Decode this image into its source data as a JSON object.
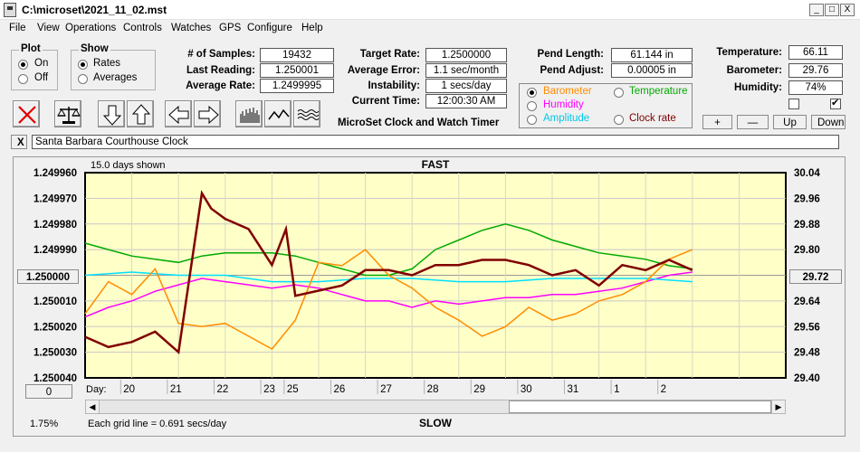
{
  "window": {
    "title": "C:\\microset\\2021_11_02.mst",
    "min": "_",
    "max": "□",
    "close": "X"
  },
  "menu": [
    "File",
    "View",
    "Operations",
    "Controls",
    "Watches",
    "GPS",
    "Configure",
    "Help"
  ],
  "plot": {
    "legend": "Plot",
    "on": "On",
    "off": "Off"
  },
  "show": {
    "legend": "Show",
    "rates": "Rates",
    "averages": "Averages"
  },
  "stats": {
    "samples_label": "# of Samples:",
    "samples": "19432",
    "last_label": "Last Reading:",
    "last": "1.250001",
    "avg_label": "Average Rate:",
    "avg": "1.2499995"
  },
  "rates": {
    "target_label": "Target Rate:",
    "target": "1.2500000",
    "avgerr_label": "Average Error:",
    "avgerr": "1.1 sec/month",
    "instab_label": "Instability:",
    "instab": "1 secs/day",
    "time_label": "Current Time:",
    "time": "12:00:30 AM",
    "caption": "MicroSet Clock and Watch Timer"
  },
  "pendulum": {
    "length_label": "Pend Length:",
    "length": "61.144 in",
    "adjust_label": "Pend Adjust:",
    "adjust": "0.00005 in"
  },
  "sensors": {
    "temp_label": "Temperature:",
    "temp": "66.11",
    "baro_label": "Barometer:",
    "baro": "29.76",
    "hum_label": "Humidity:",
    "hum": "74%"
  },
  "overlay": {
    "barometer": "Barometer",
    "temperature": "Temperature",
    "humidity": "Humidity",
    "amplitude": "Amplitude",
    "clockrate": "Clock rate"
  },
  "adjust_buttons": {
    "plus": "+",
    "minus": "—",
    "up": "Up",
    "down": "Down"
  },
  "clock_name": "Santa Barbara Courthouse Clock",
  "clear_button": "X",
  "colors": {
    "barometer": "#ff8c00",
    "temperature": "#00aa00",
    "humidity": "#ff00ff",
    "amplitude": "#00e0ff",
    "clockrate": "#800000",
    "plotbg": "#ffffc8"
  },
  "chart_data": {
    "type": "line",
    "title": "FAST",
    "bottom_title": "SLOW",
    "days_shown": "15.0 days shown",
    "grid_note": "Each grid line = 0.691 secs/day",
    "left_pct": "1.75%",
    "center_left": "1.250000",
    "center_right": "29.72",
    "bottom_button": "0",
    "day_label": "Day:",
    "x_ticks": [
      "20",
      "21",
      "22",
      "23",
      "25",
      "26",
      "27",
      "28",
      "29",
      "30",
      "31",
      "1",
      "2"
    ],
    "y_left_ticks": [
      "1.249960",
      "1.249970",
      "1.249980",
      "1.249990",
      "1.250010",
      "1.250020",
      "1.250030",
      "1.250040"
    ],
    "y_right_ticks": [
      "30.04",
      "29.96",
      "29.88",
      "29.80",
      "29.64",
      "29.56",
      "29.48",
      "29.40"
    ],
    "y_left_range": [
      1.24996,
      1.25004
    ],
    "y_right_range": [
      29.4,
      30.04
    ],
    "x_range_days": [
      0,
      15
    ],
    "series": [
      {
        "name": "Temperature",
        "color": "#00aa00",
        "x": [
          0,
          0.5,
          1,
          1.5,
          2,
          2.5,
          3,
          3.5,
          4,
          4.5,
          5,
          5.5,
          6,
          6.5,
          7,
          7.5,
          8,
          8.5,
          9,
          9.5,
          10,
          10.5,
          11,
          11.5,
          12,
          12.5,
          13
        ],
        "values": [
          29.82,
          29.8,
          29.78,
          29.77,
          29.76,
          29.78,
          29.79,
          29.79,
          29.79,
          29.78,
          29.76,
          29.74,
          29.72,
          29.72,
          29.74,
          29.8,
          29.83,
          29.86,
          29.88,
          29.86,
          29.83,
          29.81,
          29.79,
          29.78,
          29.77,
          29.75,
          29.74
        ]
      },
      {
        "name": "Humidity",
        "color": "#ff00ff",
        "x": [
          0,
          0.5,
          1,
          1.5,
          2,
          2.5,
          3,
          3.5,
          4,
          4.5,
          5,
          5.5,
          6,
          6.5,
          7,
          7.5,
          8,
          8.5,
          9,
          9.5,
          10,
          10.5,
          11,
          11.5,
          12,
          12.5,
          13
        ],
        "values": [
          29.59,
          29.62,
          29.64,
          29.67,
          29.69,
          29.71,
          29.7,
          29.69,
          29.68,
          29.69,
          29.68,
          29.66,
          29.64,
          29.64,
          29.62,
          29.64,
          29.63,
          29.64,
          29.65,
          29.65,
          29.66,
          29.66,
          29.67,
          29.68,
          29.7,
          29.72,
          29.73
        ]
      },
      {
        "name": "Amplitude",
        "color": "#00e0ff",
        "x": [
          0,
          1,
          2,
          3,
          4,
          5,
          6,
          7,
          8,
          9,
          10,
          11,
          12,
          13
        ],
        "values": [
          29.72,
          29.73,
          29.72,
          29.72,
          29.7,
          29.7,
          29.71,
          29.71,
          29.7,
          29.7,
          29.71,
          29.71,
          29.71,
          29.7
        ]
      },
      {
        "name": "Barometer",
        "color": "#ff8c00",
        "x": [
          0,
          0.5,
          1,
          1.5,
          2,
          2.5,
          3,
          3.5,
          4,
          4.5,
          5,
          5.5,
          6,
          6.5,
          7,
          7.5,
          8,
          8.5,
          9,
          9.5,
          10,
          10.5,
          11,
          11.5,
          12,
          12.5,
          13
        ],
        "values": [
          29.6,
          29.7,
          29.66,
          29.74,
          29.57,
          29.56,
          29.57,
          29.53,
          29.49,
          29.58,
          29.76,
          29.75,
          29.8,
          29.72,
          29.68,
          29.62,
          29.58,
          29.53,
          29.56,
          29.62,
          29.58,
          29.6,
          29.64,
          29.66,
          29.7,
          29.77,
          29.8
        ]
      },
      {
        "name": "Clock rate",
        "color": "#800000",
        "x": [
          0,
          0.5,
          1,
          1.5,
          2,
          2.5,
          2.7,
          3,
          3.5,
          4,
          4.3,
          4.5,
          5,
          5.5,
          6,
          6.5,
          7,
          7.5,
          8,
          8.5,
          9,
          9.5,
          10,
          10.5,
          11,
          11.5,
          12,
          12.5,
          13
        ],
        "values": [
          1.250024,
          1.250028,
          1.250026,
          1.250022,
          1.25003,
          1.249968,
          1.249974,
          1.249978,
          1.249982,
          1.249996,
          1.249982,
          1.250008,
          1.250006,
          1.250004,
          1.249998,
          1.249998,
          1.25,
          1.249996,
          1.249996,
          1.249994,
          1.249994,
          1.249996,
          1.25,
          1.249998,
          1.250004,
          1.249996,
          1.249998,
          1.249994,
          1.249998
        ]
      }
    ]
  }
}
